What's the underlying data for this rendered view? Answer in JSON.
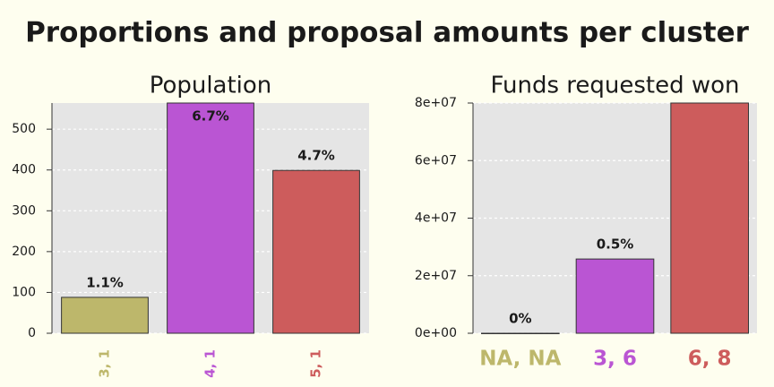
{
  "title": "Proportions and proposal amounts per cluster",
  "chart_data": [
    {
      "type": "bar",
      "title": "Population",
      "categories": [
        "3, 1",
        "4, 1",
        "5, 1"
      ],
      "values": [
        88,
        564,
        399
      ],
      "percent_labels": [
        "1.1%",
        "6.7%",
        "4.7%"
      ],
      "colors": [
        "#bdb76b",
        "#ba55d3",
        "#cd5c5c"
      ],
      "ylim": [
        0,
        564
      ],
      "yticks": [
        0,
        100,
        200,
        300,
        400,
        500
      ],
      "grid": true,
      "x_label_rotation": -90
    },
    {
      "type": "bar",
      "title": "Funds requested won",
      "categories": [
        "NA, NA",
        "3, 6",
        "6, 8"
      ],
      "values": [
        0,
        25800000,
        80000000
      ],
      "percent_labels": [
        "0%",
        "0.5%",
        null
      ],
      "colors": [
        "#bdb76b",
        "#ba55d3",
        "#cd5c5c"
      ],
      "ylim": [
        0,
        80000000
      ],
      "yticks": [
        {
          "value": 0,
          "label": "0e+00"
        },
        {
          "value": 20000000,
          "label": "2e+07"
        },
        {
          "value": 40000000,
          "label": "4e+07"
        },
        {
          "value": 60000000,
          "label": "6e+07"
        },
        {
          "value": 80000000,
          "label": "8e+07"
        }
      ],
      "grid": true,
      "x_label_rotation": 0
    }
  ]
}
